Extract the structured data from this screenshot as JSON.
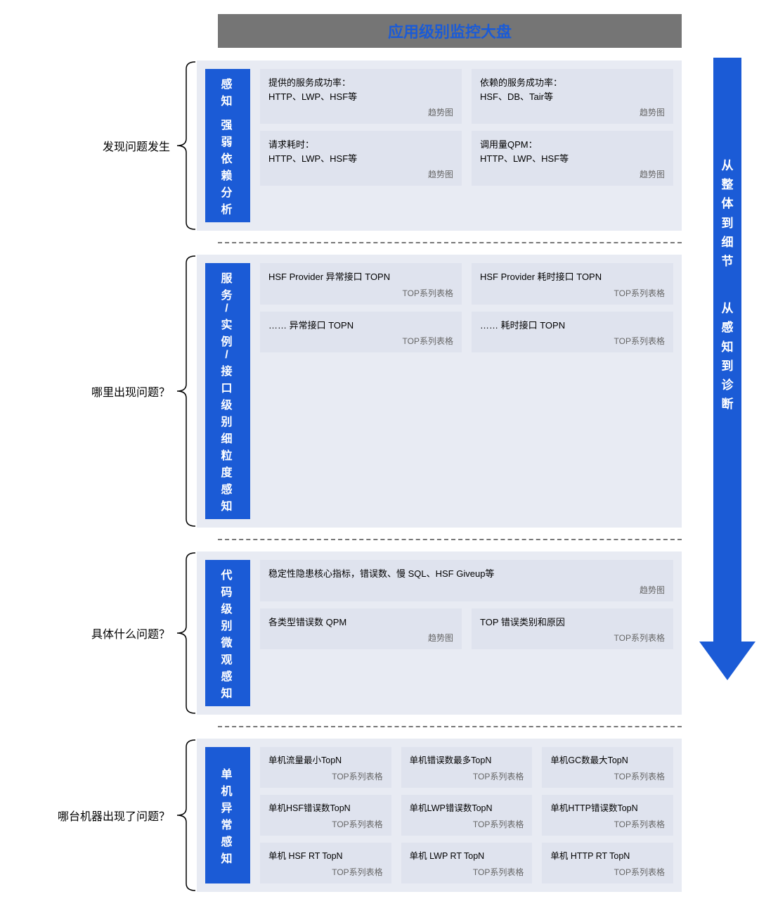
{
  "colors": {
    "header_bg": "#757575",
    "header_text": "#1b5bd6",
    "panel_bg": "#e8ebf3",
    "card_bg": "#dfe3ee",
    "blue": "#1b5bd6",
    "divider": "#777777",
    "tag_text": "#666666"
  },
  "header": {
    "title": "应用级别监控大盘"
  },
  "arrow": {
    "line1": "从整体到细节",
    "line2": "从感知到诊断"
  },
  "tags": {
    "trend": "趋势图",
    "top": "TOP系列表格"
  },
  "sections": [
    {
      "left_label": "发现问题发生",
      "blue_label_lines": [
        "感知",
        "强弱依赖分析"
      ],
      "rows": [
        [
          {
            "title": "提供的服务成功率：\nHTTP、LWP、HSF等",
            "tag": "trend"
          },
          {
            "title": "依赖的服务成功率：\nHSF、DB、Tair等",
            "tag": "trend"
          }
        ],
        [
          {
            "title": "请求耗时：\nHTTP、LWP、HSF等",
            "tag": "trend"
          },
          {
            "title": "调用量QPM：\nHTTP、LWP、HSF等",
            "tag": "trend"
          }
        ]
      ]
    },
    {
      "left_label": "哪里出现问题？",
      "blue_label_lines": [
        "服务/实例/接口级别细粒度感知"
      ],
      "rows": [
        [
          {
            "title": "HSF Provider 异常接口 TOPN",
            "tag": "top"
          },
          {
            "title": "HSF Provider 耗时接口 TOPN",
            "tag": "top"
          }
        ],
        [
          {
            "title": "…… 异常接口 TOPN",
            "tag": "top"
          },
          {
            "title": "…… 耗时接口 TOPN",
            "tag": "top"
          }
        ]
      ]
    },
    {
      "left_label": "具体什么问题？",
      "blue_label_lines": [
        "代码级别微观感知"
      ],
      "rows": [
        [
          {
            "title": "稳定性隐患核心指标，错误数、慢 SQL、HSF Giveup等",
            "tag": "trend",
            "full": true
          }
        ],
        [
          {
            "title": "各类型错误数 QPM",
            "tag": "trend"
          },
          {
            "title": "TOP 错误类别和原因",
            "tag": "top"
          }
        ]
      ]
    },
    {
      "left_label": "哪台机器出现了问题？",
      "blue_label_lines": [
        "单机异常感知"
      ],
      "rows": [
        [
          {
            "title": "单机流量最小TopN",
            "tag": "top"
          },
          {
            "title": "单机错误数最多TopN",
            "tag": "top"
          },
          {
            "title": "单机GC数最大TopN",
            "tag": "top"
          }
        ],
        [
          {
            "title": "单机HSF错误数TopN",
            "tag": "top"
          },
          {
            "title": "单机LWP错误数TopN",
            "tag": "top"
          },
          {
            "title": "单机HTTP错误数TopN",
            "tag": "top"
          }
        ],
        [
          {
            "title": "单机 HSF RT TopN",
            "tag": "top"
          },
          {
            "title": "单机 LWP RT TopN",
            "tag": "top"
          },
          {
            "title": "单机 HTTP RT TopN",
            "tag": "top"
          }
        ]
      ]
    }
  ]
}
